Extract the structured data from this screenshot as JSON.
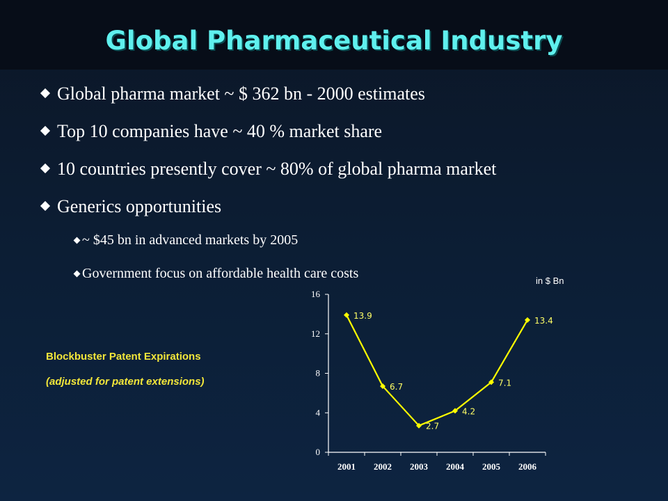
{
  "slide": {
    "title": "Global Pharmaceutical Industry",
    "bullets": [
      "Global pharma market ~ $ 362 bn - 2000 estimates",
      "Top 10 companies have ~ 40 % market share",
      "10 countries presently cover ~ 80% of global pharma market",
      "Generics opportunities"
    ],
    "sub_bullets": [
      "~ $45 bn in advanced markets by 2005",
      "Government focus on affordable health care costs"
    ],
    "chart_caption_line1": "Blockbuster Patent Expirations",
    "chart_caption_line2": "(adjusted for patent extensions)",
    "unit_label": "in $ Bn"
  },
  "colors": {
    "title": "#5ff0ee",
    "line": "#ffff00",
    "data_label": "#ffff66",
    "caption": "#f2e63a"
  },
  "chart_data": {
    "type": "line",
    "title": "",
    "xlabel": "",
    "ylabel": "",
    "x": [
      "2001",
      "2002",
      "2003",
      "2004",
      "2005",
      "2006"
    ],
    "series": [
      {
        "values": [
          13.9,
          6.7,
          2.7,
          4.2,
          7.1,
          13.4
        ],
        "labels": [
          "13.9",
          "6.7",
          "2.7",
          "4.2",
          "7.1",
          "13.4"
        ]
      }
    ],
    "ylim": [
      0,
      16
    ],
    "yticks": [
      "0",
      "4",
      "8",
      "12",
      "16"
    ],
    "grid": false,
    "legend": "none",
    "marker": "diamond"
  }
}
